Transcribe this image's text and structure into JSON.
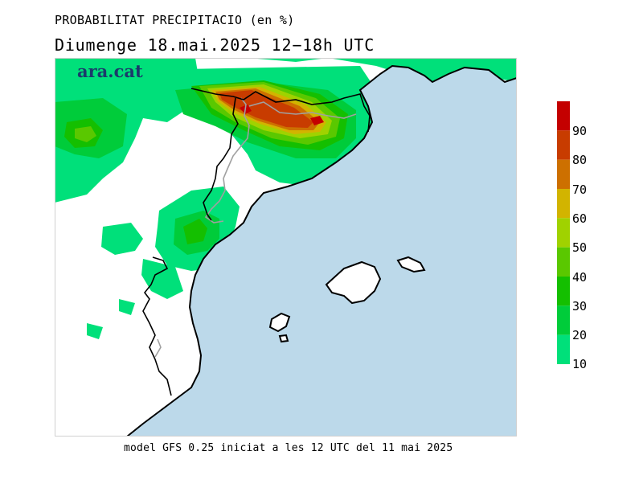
{
  "header": {
    "title": "PROBABILITAT PRECIPITACIO (en %)",
    "subtitle": "Diumenge  18.mai.2025 12−18h UTC"
  },
  "logo_text": "ara.cat",
  "footer": "model GFS 0.25 iniciat a les 12 UTC del 11 mai 2025",
  "colorbar": {
    "labels": [
      "90",
      "80",
      "70",
      "60",
      "50",
      "40",
      "30",
      "20",
      "10"
    ],
    "colors": [
      "#c40000",
      "#c83c00",
      "#cd7000",
      "#d2b400",
      "#a0d200",
      "#5ac800",
      "#14bf00",
      "#00cc3a",
      "#00e07a"
    ]
  },
  "colors": {
    "sea": "#bcd9ea",
    "land": "#ffffff",
    "border": "#a0a0a0",
    "coast": "#000000"
  }
}
